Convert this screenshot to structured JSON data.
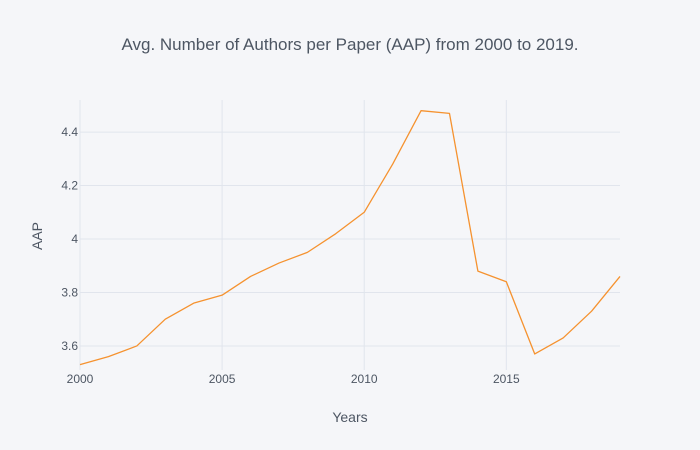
{
  "chart_data": {
    "type": "line",
    "title": "Avg. Number of Authors per Paper (AAP) from 2000 to 2019.",
    "xlabel": "Years",
    "ylabel": "AAP",
    "xlim": [
      2000,
      2019
    ],
    "ylim": [
      3.51,
      4.52
    ],
    "x_ticks": [
      2000,
      2005,
      2010,
      2015
    ],
    "y_ticks": [
      3.6,
      3.8,
      4.0,
      4.2,
      4.4
    ],
    "x_tick_labels": [
      "2000",
      "2005",
      "2010",
      "2015"
    ],
    "y_tick_labels": [
      "3.6",
      "3.8",
      "4",
      "4.2",
      "4.4"
    ],
    "grid": true,
    "legend": "none",
    "colors": {
      "background": "#f5f6f9",
      "grid": "#e1e5ed",
      "line": "#f5922f",
      "text": "#4d5663"
    },
    "series": [
      {
        "x": [
          2000,
          2001,
          2002,
          2003,
          2004,
          2005,
          2006,
          2007,
          2008,
          2009,
          2010,
          2011,
          2012,
          2013,
          2014,
          2015,
          2016,
          2017,
          2018,
          2019
        ],
        "y": [
          3.53,
          3.56,
          3.6,
          3.7,
          3.76,
          3.79,
          3.86,
          3.91,
          3.95,
          4.02,
          4.1,
          4.28,
          4.48,
          4.47,
          3.88,
          3.84,
          3.57,
          3.63,
          3.73,
          3.86
        ]
      }
    ]
  }
}
